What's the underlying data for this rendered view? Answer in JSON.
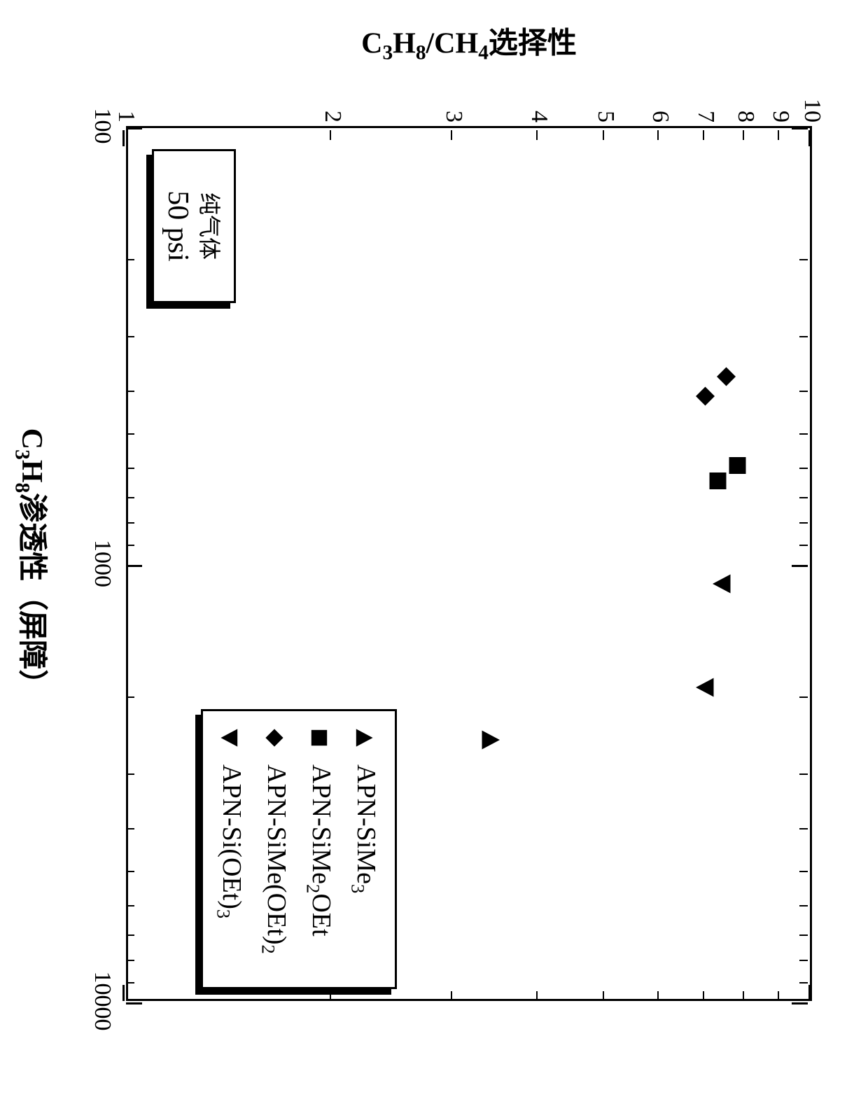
{
  "chart": {
    "type": "scatter",
    "xscale": "log",
    "yscale": "log",
    "xlim": [
      100,
      10000
    ],
    "ylim": [
      1,
      10
    ],
    "background_color": "#ffffff",
    "border_color": "#000000",
    "xlabel": "C₃H₈渗透性（屏障）",
    "ylabel": "C₃H₈/CH₄选择性",
    "label_fontsize": 42,
    "tick_fontsize": 34,
    "xtick_labels": [
      "100",
      "1000",
      "10000"
    ],
    "xtick_values": [
      100,
      1000,
      10000
    ],
    "ytick_labels": [
      "1",
      "2",
      "3",
      "4",
      "5",
      "6",
      "7",
      "8",
      "9",
      "10"
    ],
    "ytick_values": [
      1,
      2,
      3,
      4,
      5,
      6,
      7,
      8,
      9,
      10
    ],
    "series": [
      {
        "name": "APN-SiMe₃",
        "marker": "triangle-up",
        "color": "#000000",
        "points": [
          {
            "x": 2500,
            "y": 3.4
          }
        ]
      },
      {
        "name": "APN-SiMe₂OEt",
        "marker": "square",
        "color": "#000000",
        "points": [
          {
            "x": 590,
            "y": 7.8
          },
          {
            "x": 640,
            "y": 7.3
          }
        ]
      },
      {
        "name": "APN-SiMe(OEt)₂",
        "marker": "diamond",
        "color": "#000000",
        "points": [
          {
            "x": 370,
            "y": 7.5
          },
          {
            "x": 410,
            "y": 7.0
          }
        ]
      },
      {
        "name": "APN-Si(OEt)₃",
        "marker": "triangle-down",
        "color": "#000000",
        "points": [
          {
            "x": 1100,
            "y": 7.4
          },
          {
            "x": 1900,
            "y": 7.0
          }
        ]
      }
    ],
    "legend": {
      "position": "right",
      "border_color": "#000000",
      "shadow_color": "#000000",
      "items": [
        {
          "marker": "triangle-up",
          "label": "APN-SiMe₃"
        },
        {
          "marker": "square",
          "label": "APN-SiMe₂OEt"
        },
        {
          "marker": "diamond",
          "label": "APN-SiMe(OEt)₂"
        },
        {
          "marker": "triangle-down",
          "label": "APN-Si(OEt)₃"
        }
      ]
    },
    "info_box": {
      "line1": "纯气体",
      "line2": "50 psi",
      "border_color": "#000000",
      "line1_fontsize": 32,
      "line2_fontsize": 42
    }
  }
}
